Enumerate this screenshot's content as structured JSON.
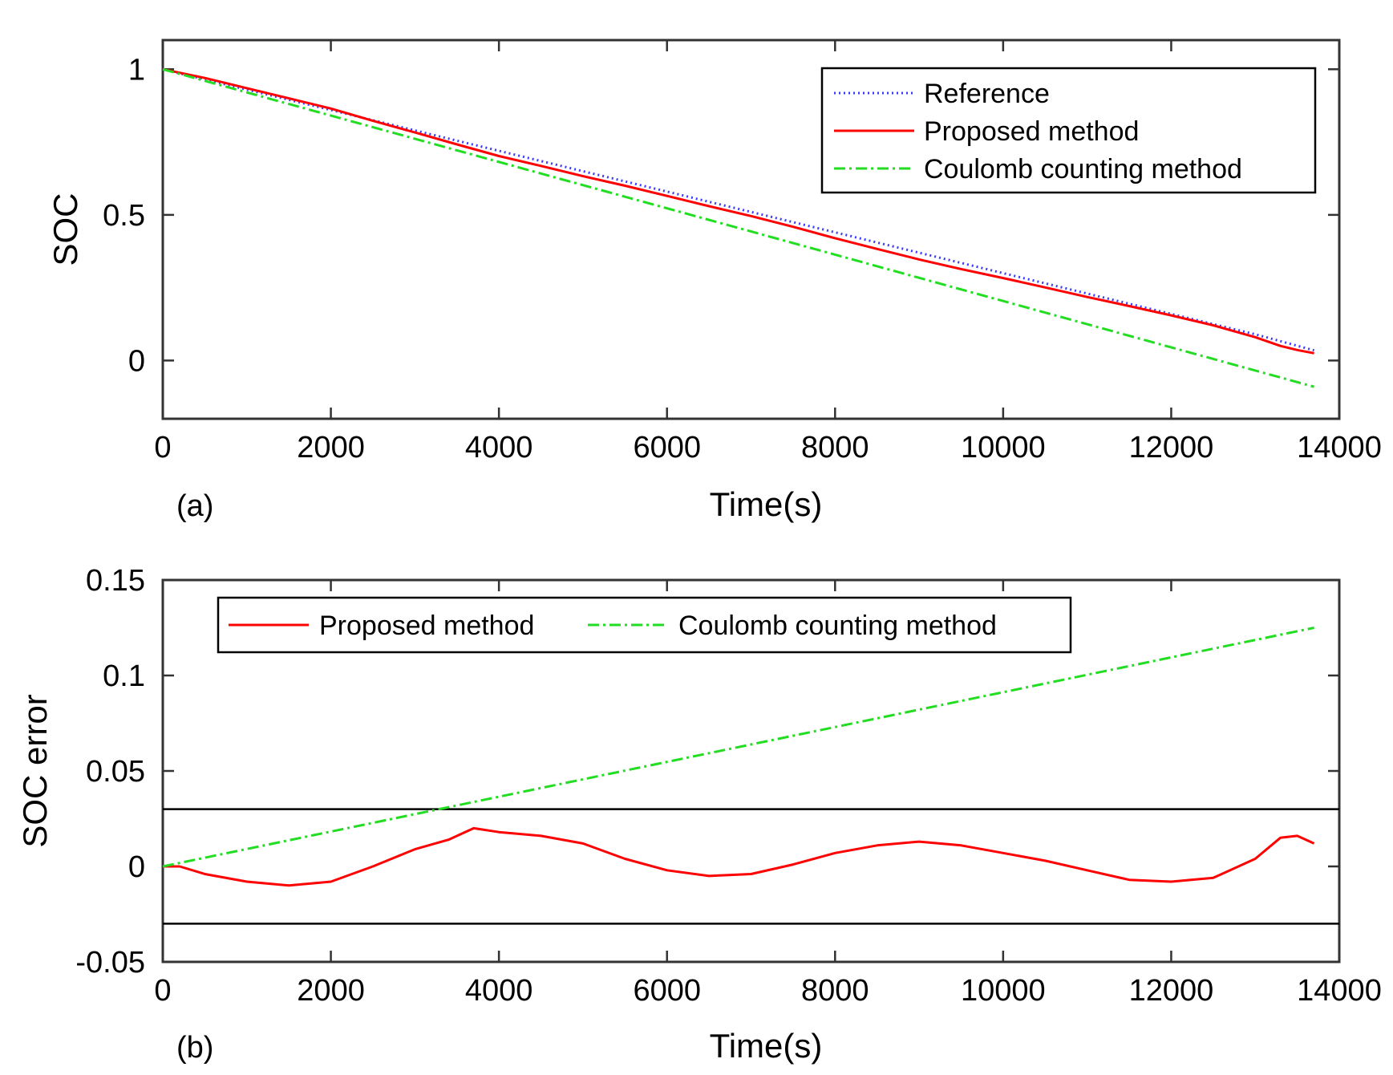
{
  "chart_data": [
    {
      "type": "line",
      "panel_label": "(a)",
      "xlabel": "Time(s)",
      "ylabel": "SOC",
      "xlim": [
        0,
        14000
      ],
      "ylim": [
        -0.2,
        1.1
      ],
      "xticks": [
        0,
        2000,
        4000,
        6000,
        8000,
        10000,
        12000,
        14000
      ],
      "xtick_labels": [
        "0",
        "2000",
        "4000",
        "6000",
        "8000",
        "10000",
        "12000",
        "14000"
      ],
      "yticks": [
        0,
        0.5,
        1
      ],
      "ytick_labels": [
        "0",
        "0.5",
        "1"
      ],
      "legend_position": "top-right",
      "series": [
        {
          "name": "Reference",
          "color": "#3a3aff",
          "style": "dotted",
          "x": [
            0,
            1000,
            2000,
            3000,
            4000,
            5000,
            6000,
            7000,
            8000,
            9000,
            10000,
            11000,
            12000,
            13000,
            13700
          ],
          "y": [
            1.0,
            0.93,
            0.86,
            0.79,
            0.72,
            0.65,
            0.58,
            0.51,
            0.44,
            0.37,
            0.3,
            0.23,
            0.16,
            0.09,
            0.035
          ]
        },
        {
          "name": "Proposed method",
          "color": "#ff0000",
          "style": "solid",
          "x": [
            0,
            500,
            1000,
            1500,
            2000,
            2500,
            3000,
            3500,
            4000,
            4500,
            5000,
            5500,
            6000,
            6500,
            7000,
            7500,
            8000,
            8500,
            9000,
            9500,
            10000,
            10500,
            11000,
            11500,
            12000,
            12500,
            13000,
            13300,
            13500,
            13700
          ],
          "y": [
            1.0,
            0.97,
            0.935,
            0.9,
            0.865,
            0.823,
            0.783,
            0.742,
            0.702,
            0.668,
            0.633,
            0.6,
            0.565,
            0.53,
            0.496,
            0.459,
            0.42,
            0.383,
            0.347,
            0.314,
            0.283,
            0.251,
            0.218,
            0.187,
            0.155,
            0.121,
            0.08,
            0.05,
            0.036,
            0.025
          ]
        },
        {
          "name": "Coulomb counting method",
          "color": "#22dd22",
          "style": "dashdot",
          "x": [
            0,
            13700
          ],
          "y": [
            1.0,
            -0.09
          ]
        }
      ]
    },
    {
      "type": "line",
      "panel_label": "(b)",
      "xlabel": "Time(s)",
      "ylabel": "SOC error",
      "xlim": [
        0,
        14000
      ],
      "ylim": [
        -0.05,
        0.15
      ],
      "xticks": [
        0,
        2000,
        4000,
        6000,
        8000,
        10000,
        12000,
        14000
      ],
      "xtick_labels": [
        "0",
        "2000",
        "4000",
        "6000",
        "8000",
        "10000",
        "12000",
        "14000"
      ],
      "yticks": [
        -0.05,
        0,
        0.05,
        0.1,
        0.15
      ],
      "ytick_labels": [
        "-0.05",
        "0",
        "0.05",
        "0.1",
        "0.15"
      ],
      "reference_lines": [
        0.03,
        -0.03
      ],
      "legend_position": "top-left",
      "series": [
        {
          "name": "Proposed method",
          "color": "#ff0000",
          "style": "solid",
          "x": [
            0,
            200,
            500,
            1000,
            1500,
            2000,
            2500,
            3000,
            3400,
            3700,
            4000,
            4500,
            5000,
            5500,
            6000,
            6500,
            7000,
            7500,
            8000,
            8500,
            9000,
            9500,
            10000,
            10500,
            11000,
            11500,
            12000,
            12500,
            13000,
            13300,
            13500,
            13700
          ],
          "y": [
            0.0,
            0.0,
            -0.004,
            -0.008,
            -0.01,
            -0.008,
            0.0,
            0.009,
            0.014,
            0.02,
            0.018,
            0.016,
            0.012,
            0.004,
            -0.002,
            -0.005,
            -0.004,
            0.001,
            0.007,
            0.011,
            0.013,
            0.011,
            0.007,
            0.003,
            -0.002,
            -0.007,
            -0.008,
            -0.006,
            0.004,
            0.015,
            0.016,
            0.012
          ]
        },
        {
          "name": "Coulomb counting method",
          "color": "#22dd22",
          "style": "dashdot",
          "x": [
            0,
            13700
          ],
          "y": [
            0.0,
            0.125
          ]
        }
      ]
    }
  ]
}
